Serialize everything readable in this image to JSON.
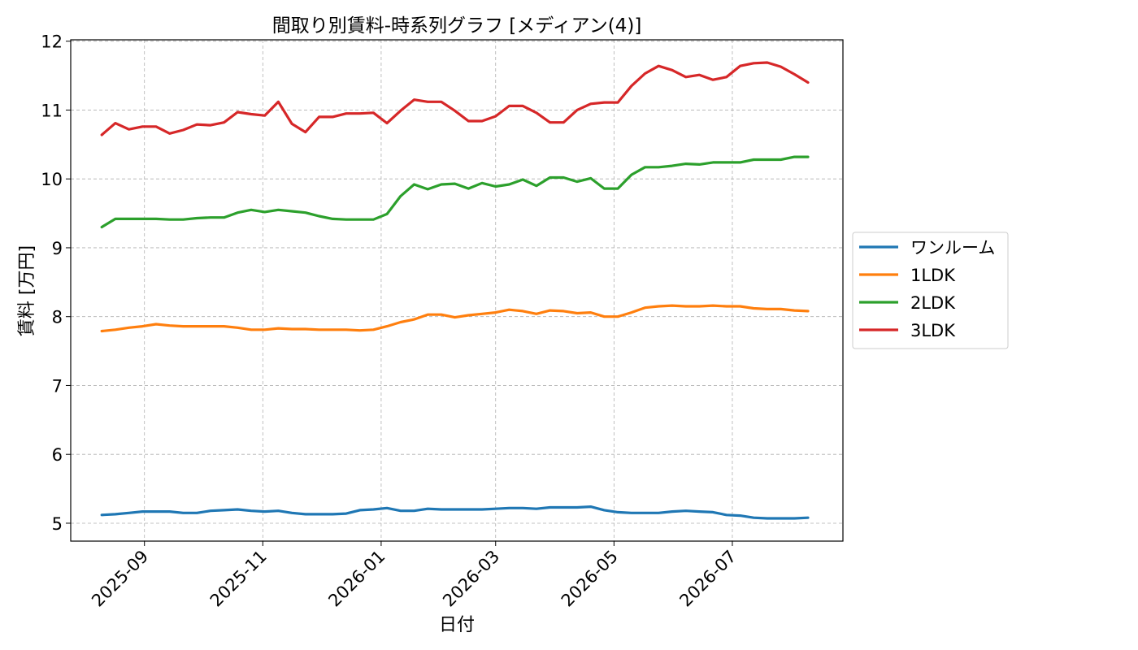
{
  "chart_data": {
    "type": "line",
    "title": "間取り別賃料-時系列グラフ [メディアン(4)]",
    "xlabel": "日付",
    "ylabel": "賃料 [万円]",
    "ylim": [
      4.74,
      12.02
    ],
    "y_ticks": [
      5,
      6,
      7,
      8,
      9,
      10,
      11,
      12
    ],
    "x_ticks": [
      "2025-09",
      "2025-11",
      "2026-01",
      "2026-03",
      "2026-05",
      "2026-07"
    ],
    "x_tick_dates": [
      "2025-09-01",
      "2025-11-01",
      "2026-01-01",
      "2026-03-01",
      "2026-05-01",
      "2026-07-01"
    ],
    "xlim": [
      "2025-07-25",
      "2026-08-27"
    ],
    "grid": true,
    "legend_position": "center-right",
    "x": [
      "2025-08-10",
      "2025-08-17",
      "2025-08-24",
      "2025-08-31",
      "2025-09-07",
      "2025-09-14",
      "2025-09-21",
      "2025-09-28",
      "2025-10-05",
      "2025-10-12",
      "2025-10-19",
      "2025-10-26",
      "2025-11-02",
      "2025-11-09",
      "2025-11-16",
      "2025-11-23",
      "2025-11-30",
      "2025-12-07",
      "2025-12-14",
      "2025-12-21",
      "2025-12-28",
      "2026-01-04",
      "2026-01-11",
      "2026-01-18",
      "2026-01-25",
      "2026-02-01",
      "2026-02-08",
      "2026-02-15",
      "2026-02-22",
      "2026-03-01",
      "2026-03-08",
      "2026-03-15",
      "2026-03-22",
      "2026-03-29",
      "2026-04-05",
      "2026-04-12",
      "2026-04-19",
      "2026-04-26",
      "2026-05-03",
      "2026-05-10",
      "2026-05-17",
      "2026-05-24",
      "2026-05-31",
      "2026-06-07",
      "2026-06-14",
      "2026-06-21",
      "2026-06-28",
      "2026-07-05",
      "2026-07-12",
      "2026-07-19",
      "2026-07-26",
      "2026-08-02",
      "2026-08-09"
    ],
    "series": [
      {
        "name": "ワンルーム",
        "color": "#1f77b4",
        "values": [
          5.12,
          5.13,
          5.15,
          5.17,
          5.17,
          5.17,
          5.15,
          5.15,
          5.18,
          5.19,
          5.2,
          5.18,
          5.17,
          5.18,
          5.15,
          5.13,
          5.13,
          5.13,
          5.14,
          5.19,
          5.2,
          5.22,
          5.18,
          5.18,
          5.21,
          5.2,
          5.2,
          5.2,
          5.2,
          5.21,
          5.22,
          5.22,
          5.21,
          5.23,
          5.23,
          5.23,
          5.24,
          5.19,
          5.16,
          5.15,
          5.15,
          5.15,
          5.17,
          5.18,
          5.17,
          5.16,
          5.12,
          5.11,
          5.08,
          5.07,
          5.07,
          5.07,
          5.08
        ]
      },
      {
        "name": "1LDK",
        "color": "#ff7f0e",
        "values": [
          7.79,
          7.81,
          7.84,
          7.86,
          7.89,
          7.87,
          7.86,
          7.86,
          7.86,
          7.86,
          7.84,
          7.81,
          7.81,
          7.83,
          7.82,
          7.82,
          7.81,
          7.81,
          7.81,
          7.8,
          7.81,
          7.86,
          7.92,
          7.96,
          8.03,
          8.03,
          7.99,
          8.02,
          8.04,
          8.06,
          8.1,
          8.08,
          8.04,
          8.09,
          8.08,
          8.05,
          8.06,
          8.0,
          8.0,
          8.06,
          8.13,
          8.15,
          8.16,
          8.15,
          8.15,
          8.16,
          8.15,
          8.15,
          8.12,
          8.11,
          8.11,
          8.09,
          8.08
        ]
      },
      {
        "name": "2LDK",
        "color": "#2ca02c",
        "values": [
          9.3,
          9.42,
          9.42,
          9.42,
          9.42,
          9.41,
          9.41,
          9.43,
          9.44,
          9.44,
          9.51,
          9.55,
          9.52,
          9.55,
          9.53,
          9.51,
          9.46,
          9.42,
          9.41,
          9.41,
          9.41,
          9.49,
          9.75,
          9.92,
          9.85,
          9.92,
          9.93,
          9.86,
          9.94,
          9.89,
          9.92,
          9.99,
          9.9,
          10.02,
          10.02,
          9.96,
          10.01,
          9.86,
          9.86,
          10.06,
          10.17,
          10.17,
          10.19,
          10.22,
          10.21,
          10.24,
          10.24,
          10.24,
          10.28,
          10.28,
          10.28,
          10.32,
          10.32
        ]
      },
      {
        "name": "3LDK",
        "color": "#d62728",
        "values": [
          10.64,
          10.81,
          10.72,
          10.76,
          10.76,
          10.66,
          10.71,
          10.79,
          10.78,
          10.82,
          10.97,
          10.94,
          10.92,
          11.12,
          10.8,
          10.68,
          10.9,
          10.9,
          10.95,
          10.95,
          10.96,
          10.81,
          10.99,
          11.15,
          11.12,
          11.12,
          10.99,
          10.84,
          10.84,
          10.91,
          11.06,
          11.06,
          10.96,
          10.82,
          10.82,
          11.0,
          11.09,
          11.11,
          11.11,
          11.35,
          11.53,
          11.64,
          11.58,
          11.48,
          11.51,
          11.44,
          11.48,
          11.64,
          11.68,
          11.69,
          11.63,
          11.52,
          11.4
        ]
      }
    ]
  }
}
